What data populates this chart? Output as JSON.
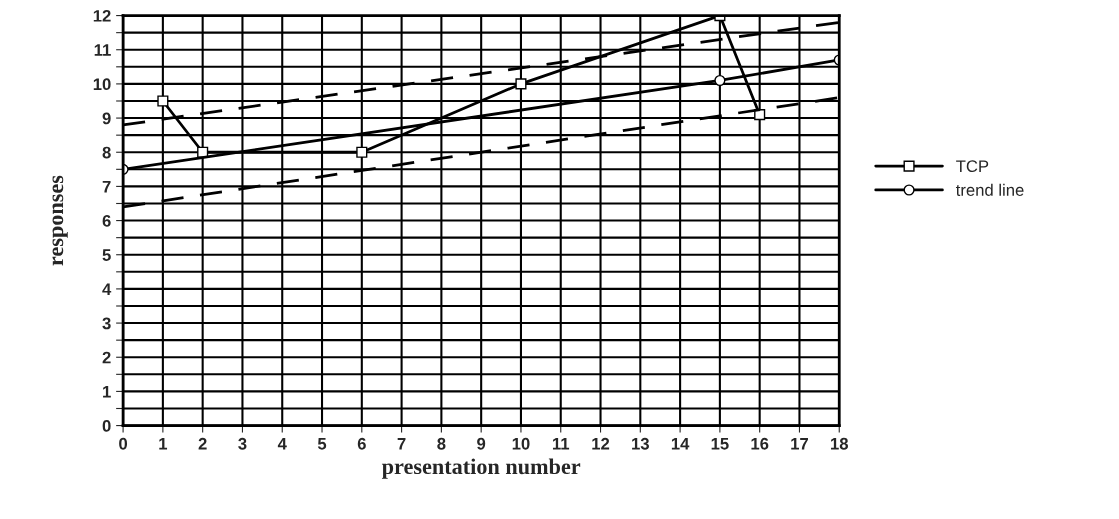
{
  "chart_data": {
    "type": "line",
    "xlabel": "presentation number",
    "ylabel": "responses",
    "xlim": [
      0,
      18
    ],
    "xticks": [
      0,
      1,
      2,
      3,
      4,
      5,
      6,
      7,
      8,
      9,
      10,
      11,
      12,
      13,
      14,
      15,
      16,
      17,
      18
    ],
    "ylim": [
      0,
      12
    ],
    "yticks": [
      0,
      {
        "value": 0.5,
        "label": null
      },
      1,
      {
        "value": 1.5,
        "label": null
      },
      2,
      {
        "value": 2.5,
        "label": null
      },
      3,
      {
        "value": 3.5,
        "label": null
      },
      4,
      {
        "value": 4.5,
        "label": null
      },
      5,
      {
        "value": 5.5,
        "label": null
      },
      6,
      {
        "value": 6.5,
        "label": null
      },
      7,
      {
        "value": 7.5,
        "label": null
      },
      8,
      {
        "value": 8.5,
        "label": null
      },
      9,
      {
        "value": 9.5,
        "label": null
      },
      10,
      {
        "value": 10.5,
        "label": null
      },
      11,
      {
        "value": 11.5,
        "label": null
      },
      12
    ],
    "grid": true,
    "legend": "right",
    "series": [
      {
        "name": "TCP",
        "color": "#000000",
        "marker": "square",
        "line_style": "solid",
        "x": [
          1,
          2,
          6,
          10,
          15,
          16
        ],
        "values": [
          9.5,
          8,
          8,
          10,
          12,
          9.1
        ]
      },
      {
        "name": "trend line",
        "color": "#000000",
        "marker": "circle",
        "line_style": "solid",
        "x": [
          0,
          15,
          18
        ],
        "values": [
          7.5,
          10.1,
          10.7
        ]
      },
      {
        "color": "#000000",
        "marker": "none",
        "line_style": "dashed",
        "x": [
          0,
          18
        ],
        "values": [
          8.8,
          11.8
        ]
      },
      {
        "color": "#000000",
        "marker": "none",
        "line_style": "dashed",
        "x": [
          0,
          18
        ],
        "values": [
          6.4,
          9.6
        ]
      }
    ]
  }
}
